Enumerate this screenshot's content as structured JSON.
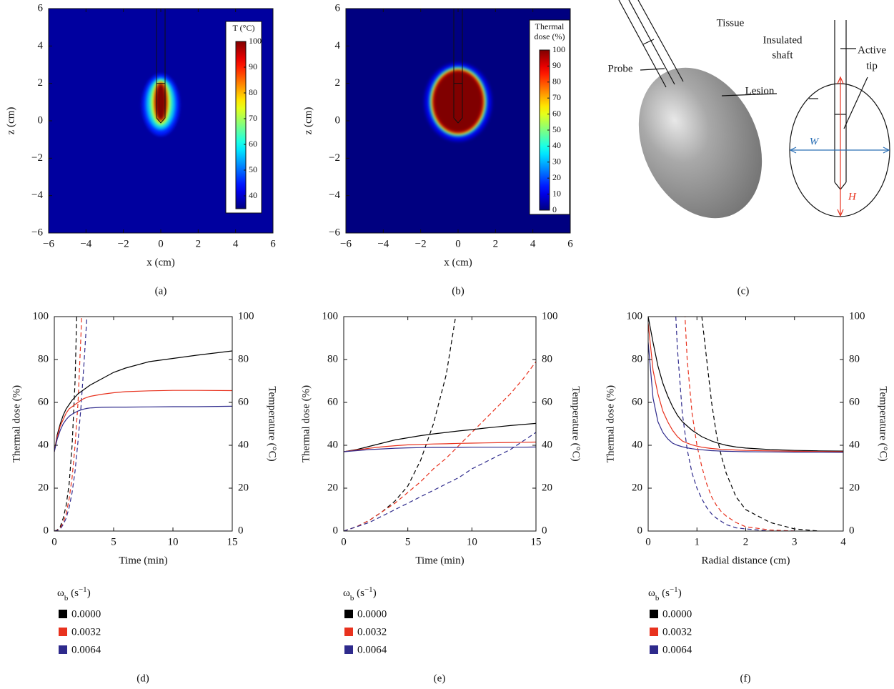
{
  "chart_data": [
    {
      "type": "heatmap",
      "caption": "(a)",
      "xlabel": "x (cm)",
      "ylabel": "z (cm)",
      "xlim": [
        -6,
        6
      ],
      "ylim": [
        -6,
        6
      ],
      "xticks": [
        {
          "value": -6,
          "label": "−6"
        },
        {
          "value": -4,
          "label": "−4"
        },
        {
          "value": -2,
          "label": "−2"
        },
        0,
        2,
        4,
        6
      ],
      "yticks": [
        {
          "value": -6,
          "label": "−6"
        },
        {
          "value": -4,
          "label": "−4"
        },
        {
          "value": -2,
          "label": "−2"
        },
        0,
        2,
        4,
        6
      ],
      "colormap": "jet",
      "background": 37,
      "colorbar": {
        "title": [
          "T (°C)"
        ],
        "lim": [
          35,
          100
        ],
        "ticks": [
          40,
          50,
          60,
          70,
          80,
          90,
          100
        ]
      },
      "contours": [
        {
          "value": 45,
          "x": [
            -1.0,
            1.0
          ],
          "z": [
            -0.8,
            2.5
          ]
        },
        {
          "value": 55,
          "x": [
            -0.8,
            0.8
          ],
          "z": [
            -0.5,
            2.3
          ]
        },
        {
          "value": 65,
          "x": [
            -0.6,
            0.6
          ],
          "z": [
            -0.3,
            2.2
          ]
        },
        {
          "value": 75,
          "x": [
            -0.45,
            0.45
          ],
          "z": [
            -0.15,
            2.1
          ]
        },
        {
          "value": 85,
          "x": [
            -0.35,
            0.35
          ],
          "z": [
            0,
            2.05
          ]
        },
        {
          "value": 100,
          "x": [
            -0.3,
            0.3
          ],
          "z": [
            0,
            2
          ]
        }
      ]
    },
    {
      "type": "heatmap",
      "caption": "(b)",
      "xlabel": "x (cm)",
      "ylabel": "z (cm)",
      "xlim": [
        -6,
        6
      ],
      "ylim": [
        -6,
        6
      ],
      "xticks": [
        {
          "value": -6,
          "label": "−6"
        },
        {
          "value": -4,
          "label": "−4"
        },
        {
          "value": -2,
          "label": "−2"
        },
        0,
        2,
        4,
        6
      ],
      "yticks": [
        {
          "value": -6,
          "label": "−6"
        },
        {
          "value": -4,
          "label": "−4"
        },
        {
          "value": -2,
          "label": "−2"
        },
        0,
        2,
        4,
        6
      ],
      "colormap": "jet",
      "background": 0,
      "colorbar": {
        "title": [
          "Thermal",
          "dose (%)"
        ],
        "lim": [
          0,
          100
        ],
        "ticks": [
          0,
          10,
          20,
          30,
          40,
          50,
          60,
          70,
          80,
          90,
          100
        ]
      },
      "contours": [
        {
          "value": 10,
          "x": [
            -1.8,
            1.8
          ],
          "z": [
            -1.1,
            3.1
          ]
        },
        {
          "value": 30,
          "x": [
            -1.55,
            1.55
          ],
          "z": [
            -0.85,
            2.9
          ]
        },
        {
          "value": 60,
          "x": [
            -1.45,
            1.45
          ],
          "z": [
            -0.75,
            2.8
          ]
        },
        {
          "value": 90,
          "x": [
            -1.35,
            1.35
          ],
          "z": [
            -0.65,
            2.7
          ]
        },
        {
          "value": 100,
          "x": [
            -1.3,
            1.3
          ],
          "z": [
            -0.6,
            2.65
          ]
        }
      ]
    },
    {
      "type": "line",
      "caption": "(d)",
      "xlabel": "Time (min)",
      "ylabel": "Thermal dose (%)",
      "y2label": "Temperature (°C)",
      "xlim": [
        0,
        15
      ],
      "xticks": [
        0,
        5,
        10,
        15
      ],
      "ylim": [
        0,
        100
      ],
      "yticks": [
        0,
        20,
        40,
        60,
        80,
        100
      ],
      "y2lim": [
        0,
        100
      ],
      "y2ticks": [
        0,
        20,
        40,
        60,
        80,
        100
      ],
      "legend_title": [
        "ω",
        "b",
        " (s",
        "−1",
        ")"
      ],
      "x": [
        0,
        0.25,
        0.5,
        0.75,
        1,
        1.25,
        1.5,
        1.75,
        2,
        2.25,
        2.5,
        2.75,
        3,
        4,
        5,
        6,
        8,
        10,
        12,
        15
      ],
      "series": [
        {
          "name": "0.0000",
          "color": "#000000",
          "style": "dashed",
          "values": [
            0,
            0.5,
            2,
            6,
            12,
            22,
            40,
            70,
            125,
            null,
            null,
            null,
            null,
            null,
            null,
            null,
            null,
            null,
            null,
            null
          ]
        },
        {
          "name": "0.0032",
          "color": "#e8321e",
          "style": "dashed",
          "values": [
            0,
            0.3,
            1.5,
            4,
            8,
            15,
            25,
            40,
            60,
            92,
            130,
            null,
            null,
            null,
            null,
            null,
            null,
            null,
            null,
            null
          ]
        },
        {
          "name": "0.0064",
          "color": "#2e2a8c",
          "style": "dashed",
          "values": [
            0,
            0.2,
            1,
            3,
            6,
            11,
            18,
            28,
            42,
            58,
            78,
            100,
            125,
            null,
            null,
            null,
            null,
            null,
            null,
            null
          ]
        },
        {
          "color": "#000000",
          "style": "solid",
          "axis": "y2",
          "values": [
            37,
            45,
            50,
            54,
            57,
            59,
            61,
            62.5,
            64,
            65,
            66,
            67,
            68,
            71,
            74,
            76,
            79,
            80.5,
            82,
            84
          ]
        },
        {
          "color": "#e8321e",
          "style": "solid",
          "axis": "y2",
          "values": [
            37,
            44,
            49,
            52,
            55,
            57,
            58,
            59,
            60,
            61,
            61.8,
            62.3,
            62.8,
            63.8,
            64.5,
            65,
            65.4,
            65.6,
            65.6,
            65.5
          ]
        },
        {
          "color": "#2e2a8c",
          "style": "solid",
          "axis": "y2",
          "values": [
            37,
            43,
            47,
            50,
            52,
            53.5,
            54.5,
            55.3,
            56,
            56.5,
            56.9,
            57.2,
            57.4,
            57.7,
            57.8,
            57.8,
            57.9,
            58,
            58,
            58.2
          ]
        }
      ]
    },
    {
      "type": "line",
      "caption": "(e)",
      "xlabel": "Time (min)",
      "ylabel": "Thermal dose (%)",
      "y2label": "Temperature (°C)",
      "xlim": [
        0,
        15
      ],
      "xticks": [
        0,
        5,
        10,
        15
      ],
      "ylim": [
        0,
        100
      ],
      "yticks": [
        0,
        20,
        40,
        60,
        80,
        100
      ],
      "y2lim": [
        0,
        100
      ],
      "y2ticks": [
        0,
        20,
        40,
        60,
        80,
        100
      ],
      "legend_title": [
        "ω",
        "b",
        " (s",
        "−1",
        ")"
      ],
      "x": [
        0,
        1,
        2,
        3,
        4,
        5,
        6,
        7,
        8,
        9,
        10,
        11,
        12,
        13,
        14,
        15
      ],
      "series": [
        {
          "name": "0.0000",
          "color": "#000000",
          "style": "dashed",
          "values": [
            0,
            2,
            5,
            9,
            14,
            21,
            33,
            50,
            73,
            110,
            null,
            null,
            null,
            null,
            null,
            null
          ]
        },
        {
          "name": "0.0032",
          "color": "#e8321e",
          "style": "dashed",
          "values": [
            0,
            2,
            5,
            9,
            13,
            18,
            23,
            29,
            34,
            40,
            46,
            52,
            58,
            64,
            71,
            79
          ]
        },
        {
          "name": "0.0064",
          "color": "#2e2a8c",
          "style": "dashed",
          "values": [
            0,
            2,
            4,
            7,
            10,
            13,
            16,
            19,
            22,
            25,
            29,
            32,
            35,
            38,
            42,
            46
          ]
        },
        {
          "color": "#000000",
          "style": "solid",
          "axis": "y2",
          "values": [
            37,
            38,
            39.5,
            41,
            42.5,
            43.5,
            44.5,
            45.3,
            46,
            46.7,
            47.3,
            48,
            48.6,
            49.2,
            49.7,
            50.2
          ]
        },
        {
          "color": "#e8321e",
          "style": "solid",
          "axis": "y2",
          "values": [
            37,
            37.8,
            38.6,
            39.3,
            39.8,
            40.2,
            40.4,
            40.6,
            40.7,
            40.9,
            41,
            41.1,
            41.2,
            41.3,
            41.4,
            41.5
          ]
        },
        {
          "color": "#2e2a8c",
          "style": "solid",
          "axis": "y2",
          "values": [
            37,
            37.5,
            38,
            38.3,
            38.6,
            38.8,
            38.9,
            39,
            39,
            39,
            39.1,
            39.1,
            39.1,
            39.1,
            39.1,
            39.2
          ]
        }
      ]
    },
    {
      "type": "line",
      "caption": "(f)",
      "xlabel": "Radial distance (cm)",
      "ylabel": "Thermal dose (%)",
      "y2label": "Temperature (°C)",
      "xlim": [
        0,
        4
      ],
      "xticks": [
        0,
        1,
        2,
        3,
        4
      ],
      "ylim": [
        0,
        100
      ],
      "yticks": [
        0,
        20,
        40,
        60,
        80,
        100
      ],
      "y2lim": [
        0,
        100
      ],
      "y2ticks": [
        0,
        20,
        40,
        60,
        80,
        100
      ],
      "legend_title": [
        "ω",
        "b",
        " (s",
        "−1",
        ")"
      ],
      "x": [
        0,
        0.1,
        0.2,
        0.3,
        0.4,
        0.5,
        0.6,
        0.7,
        0.8,
        0.9,
        1.0,
        1.1,
        1.2,
        1.3,
        1.4,
        1.5,
        1.6,
        1.8,
        2.0,
        2.5,
        3.0,
        3.5,
        4.0
      ],
      "series": [
        {
          "name": "0.0000",
          "color": "#000000",
          "style": "dashed",
          "values": [
            null,
            null,
            null,
            null,
            null,
            null,
            null,
            null,
            null,
            null,
            130,
            100,
            80,
            60,
            45,
            35,
            27,
            16,
            10,
            4,
            1,
            0,
            null
          ]
        },
        {
          "name": "0.0032",
          "color": "#e8321e",
          "style": "dashed",
          "values": [
            null,
            null,
            null,
            null,
            null,
            null,
            null,
            125,
            80,
            55,
            40,
            30,
            22,
            16,
            12,
            9,
            7,
            4,
            2,
            0.5,
            0,
            null,
            null
          ]
        },
        {
          "name": "0.0064",
          "color": "#2e2a8c",
          "style": "dashed",
          "values": [
            null,
            null,
            null,
            null,
            null,
            130,
            85,
            55,
            38,
            27,
            20,
            15,
            11,
            8,
            6,
            4.5,
            3,
            1.5,
            1,
            0,
            0,
            null,
            null
          ]
        },
        {
          "color": "#000000",
          "style": "solid",
          "axis": "y2",
          "values": [
            100,
            88,
            77,
            69,
            63,
            58,
            54,
            51,
            49,
            47,
            45.5,
            44,
            43,
            42,
            41.2,
            40.6,
            40,
            39.2,
            38.7,
            38,
            37.6,
            37.4,
            37.3
          ]
        },
        {
          "color": "#e8321e",
          "style": "solid",
          "axis": "y2",
          "values": [
            97,
            75,
            64,
            56,
            51,
            47,
            44,
            42,
            41,
            40.2,
            39.6,
            39.1,
            38.8,
            38.5,
            38.3,
            38.1,
            38,
            37.8,
            37.6,
            37.4,
            37.2,
            37.1,
            37
          ]
        },
        {
          "color": "#2e2a8c",
          "style": "solid",
          "axis": "y2",
          "values": [
            88,
            62,
            51,
            46,
            43,
            41,
            40,
            39.3,
            38.8,
            38.4,
            38.1,
            37.9,
            37.7,
            37.5,
            37.4,
            37.3,
            37.2,
            37.1,
            37,
            36.9,
            36.8,
            36.8,
            36.7
          ]
        }
      ]
    }
  ],
  "diagram": {
    "caption": "(c)",
    "tissue": "Tissue",
    "insulated_shaft": [
      "Insulated",
      "shaft"
    ],
    "active_tip": [
      "Active",
      "tip"
    ],
    "probe": "Probe",
    "lesion": "Lesion",
    "width": "W",
    "height": "H"
  }
}
